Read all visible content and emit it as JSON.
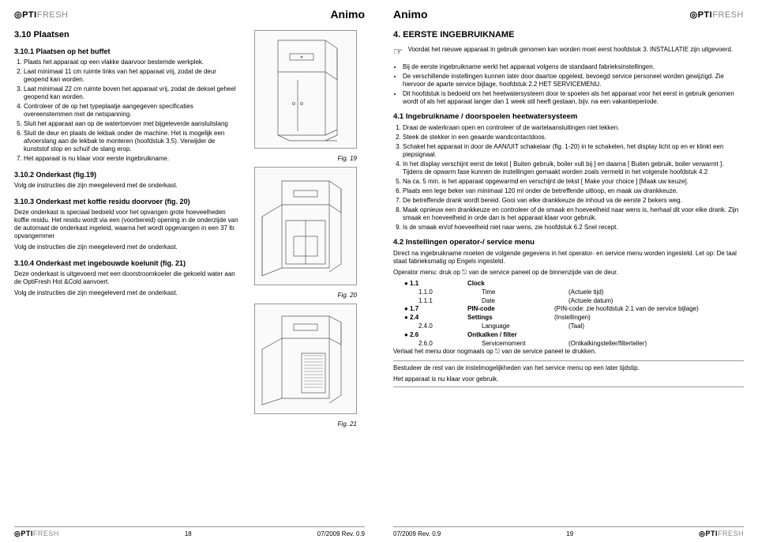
{
  "brand_product": "OPTIFRESH",
  "brand_maker": "Animo",
  "left": {
    "title": "3.10 Plaatsen",
    "s1_title": "3.10.1 Plaatsen op het buffet",
    "s1_items": [
      "Plaats het apparaat op een vlakke daarvoor bestemde werkplek.",
      "Laat minimaal 11 cm ruimte links van het apparaat vrij, zodat de deur geopend kan worden.",
      "Laat minimaal 22 cm ruimte boven het apparaat vrij, zodat de deksel geheel geopend kan worden.",
      "Controleer of de op het typeplaatje aangegeven specificaties overeenstemmen met de netspanning.",
      "Sluit het apparaat aan op de watertoevoer met bijgeleverde aansluitslang",
      "Sluit de deur en plaats de lekbak onder de machine. Het is mogelijk een afvoerslang aan de lekbak te monteren (hoofdstuk 3.5). Verwijder de kunststof stop en schuif de slang erop.",
      "Het apparaat is nu klaar voor eerste ingebruikname."
    ],
    "s2_title": "3.10.2 Onderkast (fig.19)",
    "s2_text": "Volg de instructies die zijn meegeleverd met de onderkast.",
    "s3_title": "3.10.3 Onderkast met koffie residu doorvoer (fig. 20)",
    "s3_text": "Deze onderkast is speciaal bedoeld voor het opvangen grote hoeveelheden koffie residu. Het residu wordt via een (voorbereid) opening in de onderzijde van de automaat de onderkast ingeleid, waarna het wordt opgevangen in een 37 ltr. opvangemmer",
    "s3_text2": "Volg de instructies die zijn meegeleverd met de onderkast.",
    "s4_title": "3.10.4 Onderkast met ingebouwde koelunit (fig. 21)",
    "s4_text": "Deze onderkast is uitgevoerd met een doorstroomkoeler die gekoeld water aan de OptiFresh Hot &Cold aanvoert.",
    "s4_text2": "Volg de instructies die zijn meegeleverd met de onderkast.",
    "fig19": "Fig. 19",
    "fig20": "Fig. 20",
    "fig21": "Fig. 21",
    "page_no": "18",
    "rev": "07/2009 Rev. 0.9"
  },
  "right": {
    "title": "4. EERSTE INGEBRUIKNAME",
    "note": "Voordat het nieuwe apparaat in gebruik genomen kan worden moet eerst hoofdstuk 3. INSTALLATIE zijn uitgevoerd.",
    "bullets": [
      "Bij de eerste ingebruikname werkt het apparaat volgens de standaard fabrieksinstellingen.",
      "De verschillende instellingen kunnen later door daartoe opgeleid, bevoegd service personeel worden gewijzigd. Zie hiervoor de aparte service bijlage, hoofdstuk 2.2 HET SERVICEMENU.",
      "Dit hoofdstuk is bedoeld om het heetwatersysteem door te spoelen als het apparaat voor het eerst in gebruik genomen wordt of als het apparaat langer dan 1 week stil heeft gestaan, bijv. na een vakantieperiode."
    ],
    "s41_title": "4.1 Ingebruikname / doorspoelen heetwatersysteem",
    "s41_items": [
      "Draai de waterkraan open en controleer of de wartelaansluitingen niet lekken.",
      "Steek de stekker in een geaarde wandcontactdoos.",
      "Schakel het apparaat in door de AAN/UIT schakelaar (fig. 1-20) in te schakelen, het display licht op en er klinkt een piepsignaal.",
      "In het display verschijnt eerst de tekst [ Buiten gebruik, boiler vult bij ] en daarna [ Buiten gebruik, boiler verwarmt ]. Tijdens de opwarm fase kunnen de instellingen gemaakt worden zoals vermeld in het volgende hoofdstuk 4.2",
      "Na ca. 5 min. is het apparaat opgewarmd en verschijnt de tekst [ Make your choice ] [Maak uw keuze].",
      "Plaats een lege beker van minimaal 120 ml onder de betreffende uitloop, en maak uw drankkeuze.",
      "De betreffende drank wordt bereid. Gooi van elke drankkeuze de inhoud va de eerste 2 bekers weg.",
      "Maak opnieuw een drankkeuze en controleer of de smaak en hoeveelheid naar wens is, herhaal dit voor elke drank. Zijn smaak en hoeveelheid in orde dan is het apparaat klaar voor gebruik.",
      "Is de smaak en/of hoeveelheid niet naar wens, zie hoofdstuk 6.2 Snel recept."
    ],
    "s42_title": "4.2 Instellingen operator-/ service menu",
    "s42_p1": "Direct na ingebruikname moeten de volgende gegevens in het operator- en service menu worden ingesteld. Let op: De taal staat fabrieksmatig op Engels ingesteld.",
    "s42_p2": "Operator menu: druk op ⎋ van de service paneel op de binnenzijde van de deur.",
    "menu": [
      {
        "l": 1,
        "code": "1.1",
        "label": "Clock",
        "desc": ""
      },
      {
        "l": 2,
        "code": "1.1.0",
        "label": "Time",
        "desc": "(Actuele tijd)"
      },
      {
        "l": 2,
        "code": "1.1.1",
        "label": "Date",
        "desc": "(Actuele datum)"
      },
      {
        "l": 1,
        "code": "1.7",
        "label": "PIN-code",
        "desc": "(PIN-code: zie hoofdstuk 2.1 van de service bijlage)"
      },
      {
        "l": 1,
        "code": "2.4",
        "label": "Settings",
        "desc": "(Instellingen)"
      },
      {
        "l": 2,
        "code": "2.4.0",
        "label": "Language",
        "desc": "(Taal)"
      },
      {
        "l": 1,
        "code": "2.6",
        "label": "Ontkalken / filter",
        "desc": ""
      },
      {
        "l": 2,
        "code": "2.6.0",
        "label": "Servicemoment",
        "desc": "(Ontkalkingsteller/filterteller)"
      }
    ],
    "s42_p3": "Verlaat het menu door nogmaals op ⎋ van de service paneel te drukken.",
    "closing1": "Bestudeer de rest van de instelmogelijkheden van het service menu op een later tijdstip.",
    "closing2": "Het apparaat is nu klaar voor gebruik.",
    "page_no": "19",
    "rev": "07/2009 Rev. 0.9"
  }
}
